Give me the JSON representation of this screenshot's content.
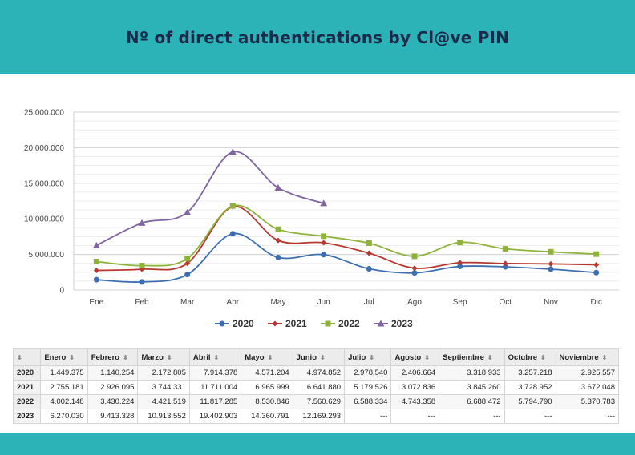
{
  "header": {
    "title": "Nº of direct authentications by Cl@ve PIN"
  },
  "chart_data": {
    "type": "line",
    "categories": [
      "Ene",
      "Feb",
      "Mar",
      "Abr",
      "May",
      "Jun",
      "Jul",
      "Ago",
      "Sep",
      "Oct",
      "Nov",
      "Dic"
    ],
    "ylim": [
      0,
      25000000
    ],
    "yticks": [
      "0",
      "5.000.000",
      "10.000.000",
      "15.000.000",
      "20.000.000",
      "25.000.000"
    ],
    "grid": true,
    "legend_position": "bottom",
    "series": [
      {
        "name": "2020",
        "color": "#3d6fb0",
        "marker": "circle",
        "values": [
          1449375,
          1140254,
          2172805,
          7914378,
          4571204,
          4974852,
          2978540,
          2406664,
          3318933,
          3257218,
          2925557,
          2450000
        ]
      },
      {
        "name": "2021",
        "color": "#b8372f",
        "marker": "diamond",
        "values": [
          2755181,
          2926095,
          3744331,
          11711004,
          6965999,
          6641880,
          5179526,
          3072836,
          3845260,
          3728952,
          3672048,
          3550000
        ]
      },
      {
        "name": "2022",
        "color": "#8fb33a",
        "marker": "square",
        "values": [
          4002148,
          3430224,
          4421519,
          11817285,
          8530846,
          7560629,
          6588334,
          4743358,
          6688472,
          5794790,
          5370783,
          5050000
        ]
      },
      {
        "name": "2023",
        "color": "#8064a2",
        "marker": "triangle",
        "values": [
          6270030,
          9413328,
          10913552,
          19402903,
          14360791,
          12169293,
          null,
          null,
          null,
          null,
          null,
          null
        ]
      }
    ]
  },
  "table": {
    "columns": [
      "Enero",
      "Febrero",
      "Marzo",
      "Abril",
      "Mayo",
      "Junio",
      "Julio",
      "Agosto",
      "Septiembre",
      "Octubre",
      "Noviembre"
    ],
    "rows": [
      {
        "year": "2020",
        "cells": [
          "1.449.375",
          "1.140.254",
          "2.172.805",
          "7.914.378",
          "4.571.204",
          "4.974.852",
          "2.978.540",
          "2.406.664",
          "3.318.933",
          "3.257.218",
          "2.925.557"
        ]
      },
      {
        "year": "2021",
        "cells": [
          "2.755.181",
          "2.926.095",
          "3.744.331",
          "11.711.004",
          "6.965.999",
          "6.641.880",
          "5.179.526",
          "3.072.836",
          "3.845.260",
          "3.728.952",
          "3.672.048"
        ]
      },
      {
        "year": "2022",
        "cells": [
          "4.002.148",
          "3.430.224",
          "4.421.519",
          "11.817.285",
          "8.530.846",
          "7.560.629",
          "6.588.334",
          "4.743.358",
          "6.688.472",
          "5.794.790",
          "5.370.783"
        ]
      },
      {
        "year": "2023",
        "cells": [
          "6.270.030",
          "9.413.328",
          "10.913.552",
          "19.402.903",
          "14.360.791",
          "12.169.293",
          "---",
          "---",
          "---",
          "---",
          "---"
        ]
      }
    ]
  }
}
